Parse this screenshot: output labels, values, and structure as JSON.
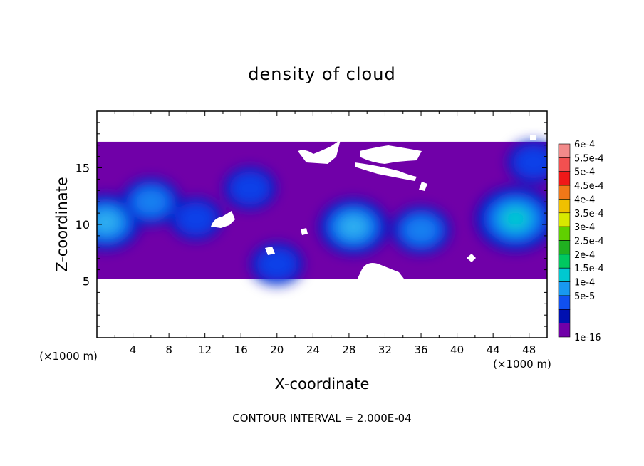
{
  "chart_data": {
    "type": "heatmap",
    "title": "density of cloud",
    "xlabel": "X-coordinate",
    "ylabel": "Z-coordinate",
    "x_unit_left": "(×1000 m)",
    "x_unit_right": "(×1000 m)",
    "xlim": [
      0,
      50
    ],
    "ylim": [
      0,
      20
    ],
    "x_ticks": [
      4,
      8,
      12,
      16,
      20,
      24,
      28,
      32,
      36,
      40,
      44,
      48
    ],
    "y_ticks": [
      5,
      10,
      15
    ],
    "footer": "CONTOUR INTERVAL = 2.000E-04",
    "colorbar": {
      "labels": [
        "6e-4",
        "5.5e-4",
        "5e-4",
        "4.5e-4",
        "4e-4",
        "3.5e-4",
        "3e-4",
        "2.5e-4",
        "2e-4",
        "1.5e-4",
        "1e-4",
        "5e-5",
        "1e-16"
      ],
      "colors": [
        "#f28a8a",
        "#f25050",
        "#f01818",
        "#f07818",
        "#f0c000",
        "#d8e800",
        "#60d000",
        "#20b020",
        "#00c860",
        "#00c8d0",
        "#1898f0",
        "#1050f0",
        "#0010b0",
        "#7000a8"
      ]
    },
    "cloud_layer": {
      "z_bottom": 5.2,
      "z_top": 17.3,
      "base_value": "1e-16"
    },
    "cores": [
      {
        "x": 1.0,
        "z": 10.2,
        "value": 0.00015
      },
      {
        "x": 6.0,
        "z": 12.0,
        "value": 0.0001
      },
      {
        "x": 11.0,
        "z": 10.5,
        "value": 7e-05
      },
      {
        "x": 17.0,
        "z": 13.2,
        "value": 7e-05
      },
      {
        "x": 20.0,
        "z": 6.5,
        "value": 7e-05
      },
      {
        "x": 28.5,
        "z": 9.8,
        "value": 0.00015
      },
      {
        "x": 36.0,
        "z": 9.5,
        "value": 0.0001
      },
      {
        "x": 46.5,
        "z": 10.5,
        "value": 0.0002
      },
      {
        "x": 48.5,
        "z": 15.5,
        "value": 7e-05
      }
    ]
  }
}
